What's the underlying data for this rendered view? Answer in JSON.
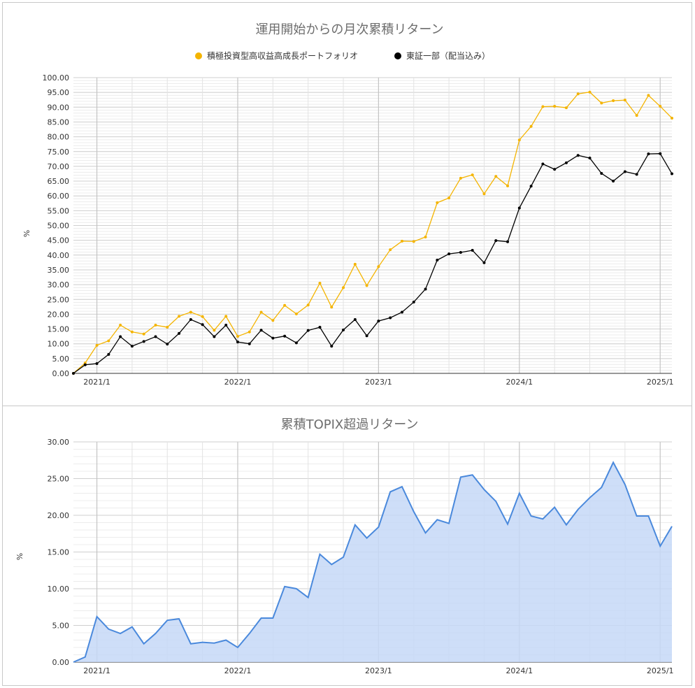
{
  "charts": {
    "top": {
      "title": "運用開始からの月次累積リターン",
      "ylabel": "%",
      "legend": [
        {
          "label": "積極投資型高収益高成長ポートフォリオ",
          "color": "#f4b400"
        },
        {
          "label": "東証一部（配当込み）",
          "color": "#000000"
        }
      ]
    },
    "bottom": {
      "title": "累積TOPIX超過リターン",
      "ylabel": "%"
    }
  },
  "chart_data": [
    {
      "type": "line",
      "title": "運用開始からの月次累積リターン",
      "xlabel": "",
      "ylabel": "%",
      "ylim": [
        0,
        100
      ],
      "y_ticks": [
        "0.00",
        "5.00",
        "10.00",
        "15.00",
        "20.00",
        "25.00",
        "30.00",
        "35.00",
        "40.00",
        "45.00",
        "50.00",
        "55.00",
        "60.00",
        "65.00",
        "70.00",
        "75.00",
        "80.00",
        "85.00",
        "90.00",
        "95.00",
        "100.00"
      ],
      "x_tick_labels": [
        "2021/1",
        "2022/1",
        "2023/1",
        "2024/1",
        "2025/1"
      ],
      "x_start": "2020/11",
      "legend_position": "top",
      "grid": true,
      "series": [
        {
          "name": "積極投資型高収益高成長ポートフォリオ",
          "color": "#f4b400",
          "values": [
            0,
            3.5,
            9.5,
            11,
            16.3,
            14,
            13.3,
            16.3,
            15.6,
            19.3,
            20.7,
            19.2,
            14.6,
            19.3,
            12.5,
            14,
            20.7,
            17.9,
            23,
            20.1,
            23.1,
            30.5,
            22.4,
            29,
            36.9,
            29.7,
            36.1,
            41.8,
            44.7,
            44.6,
            46.1,
            57.7,
            59.3,
            66,
            67.1,
            60.7,
            66.6,
            63.4,
            78.9,
            83.5,
            90.2,
            90.3,
            89.8,
            94.5,
            95.1,
            91.4,
            92.2,
            92.4,
            87.2,
            94,
            90.3,
            86.3
          ]
        },
        {
          "name": "東証一部（配当込み）",
          "color": "#000000",
          "values": [
            0,
            2.9,
            3.3,
            6.4,
            12.4,
            9.2,
            10.8,
            12.4,
            9.9,
            13.5,
            18.2,
            16.5,
            12.4,
            16.3,
            10.6,
            10,
            14.6,
            11.9,
            12.6,
            10.3,
            14.5,
            15.6,
            9.2,
            14.7,
            18.2,
            12.7,
            17.7,
            18.8,
            20.7,
            24.1,
            28.5,
            38.3,
            40.4,
            40.9,
            41.6,
            37.4,
            44.9,
            44.5,
            55.9,
            63.3,
            70.8,
            69,
            71.2,
            73.7,
            72.8,
            67.6,
            65,
            68.2,
            67.3,
            74.2,
            74.3,
            67.5
          ]
        }
      ]
    },
    {
      "type": "area",
      "title": "累積TOPIX超過リターン",
      "xlabel": "",
      "ylabel": "%",
      "ylim": [
        0,
        30
      ],
      "y_ticks": [
        "0.00",
        "5.00",
        "10.00",
        "15.00",
        "20.00",
        "25.00",
        "30.00"
      ],
      "x_tick_labels": [
        "2021/1",
        "2022/1",
        "2023/1",
        "2024/1",
        "2025/1"
      ],
      "x_start": "2020/11",
      "grid": true,
      "series": [
        {
          "name": "",
          "color": "#4a89dc",
          "fill": "#c6d8f7",
          "values": [
            0,
            0.7,
            6.2,
            4.5,
            3.9,
            4.8,
            2.5,
            3.9,
            5.7,
            5.9,
            2.5,
            2.7,
            2.6,
            3,
            2,
            3.9,
            6,
            6,
            10.3,
            10,
            8.8,
            14.7,
            13.3,
            14.3,
            18.7,
            16.9,
            18.4,
            23.2,
            23.9,
            20.5,
            17.6,
            19.4,
            18.9,
            25.2,
            25.5,
            23.5,
            21.9,
            18.8,
            23,
            19.9,
            19.5,
            21.1,
            18.7,
            20.8,
            22.4,
            23.8,
            27.2,
            24.2,
            19.9,
            19.9,
            15.8,
            18.5
          ]
        }
      ]
    }
  ]
}
